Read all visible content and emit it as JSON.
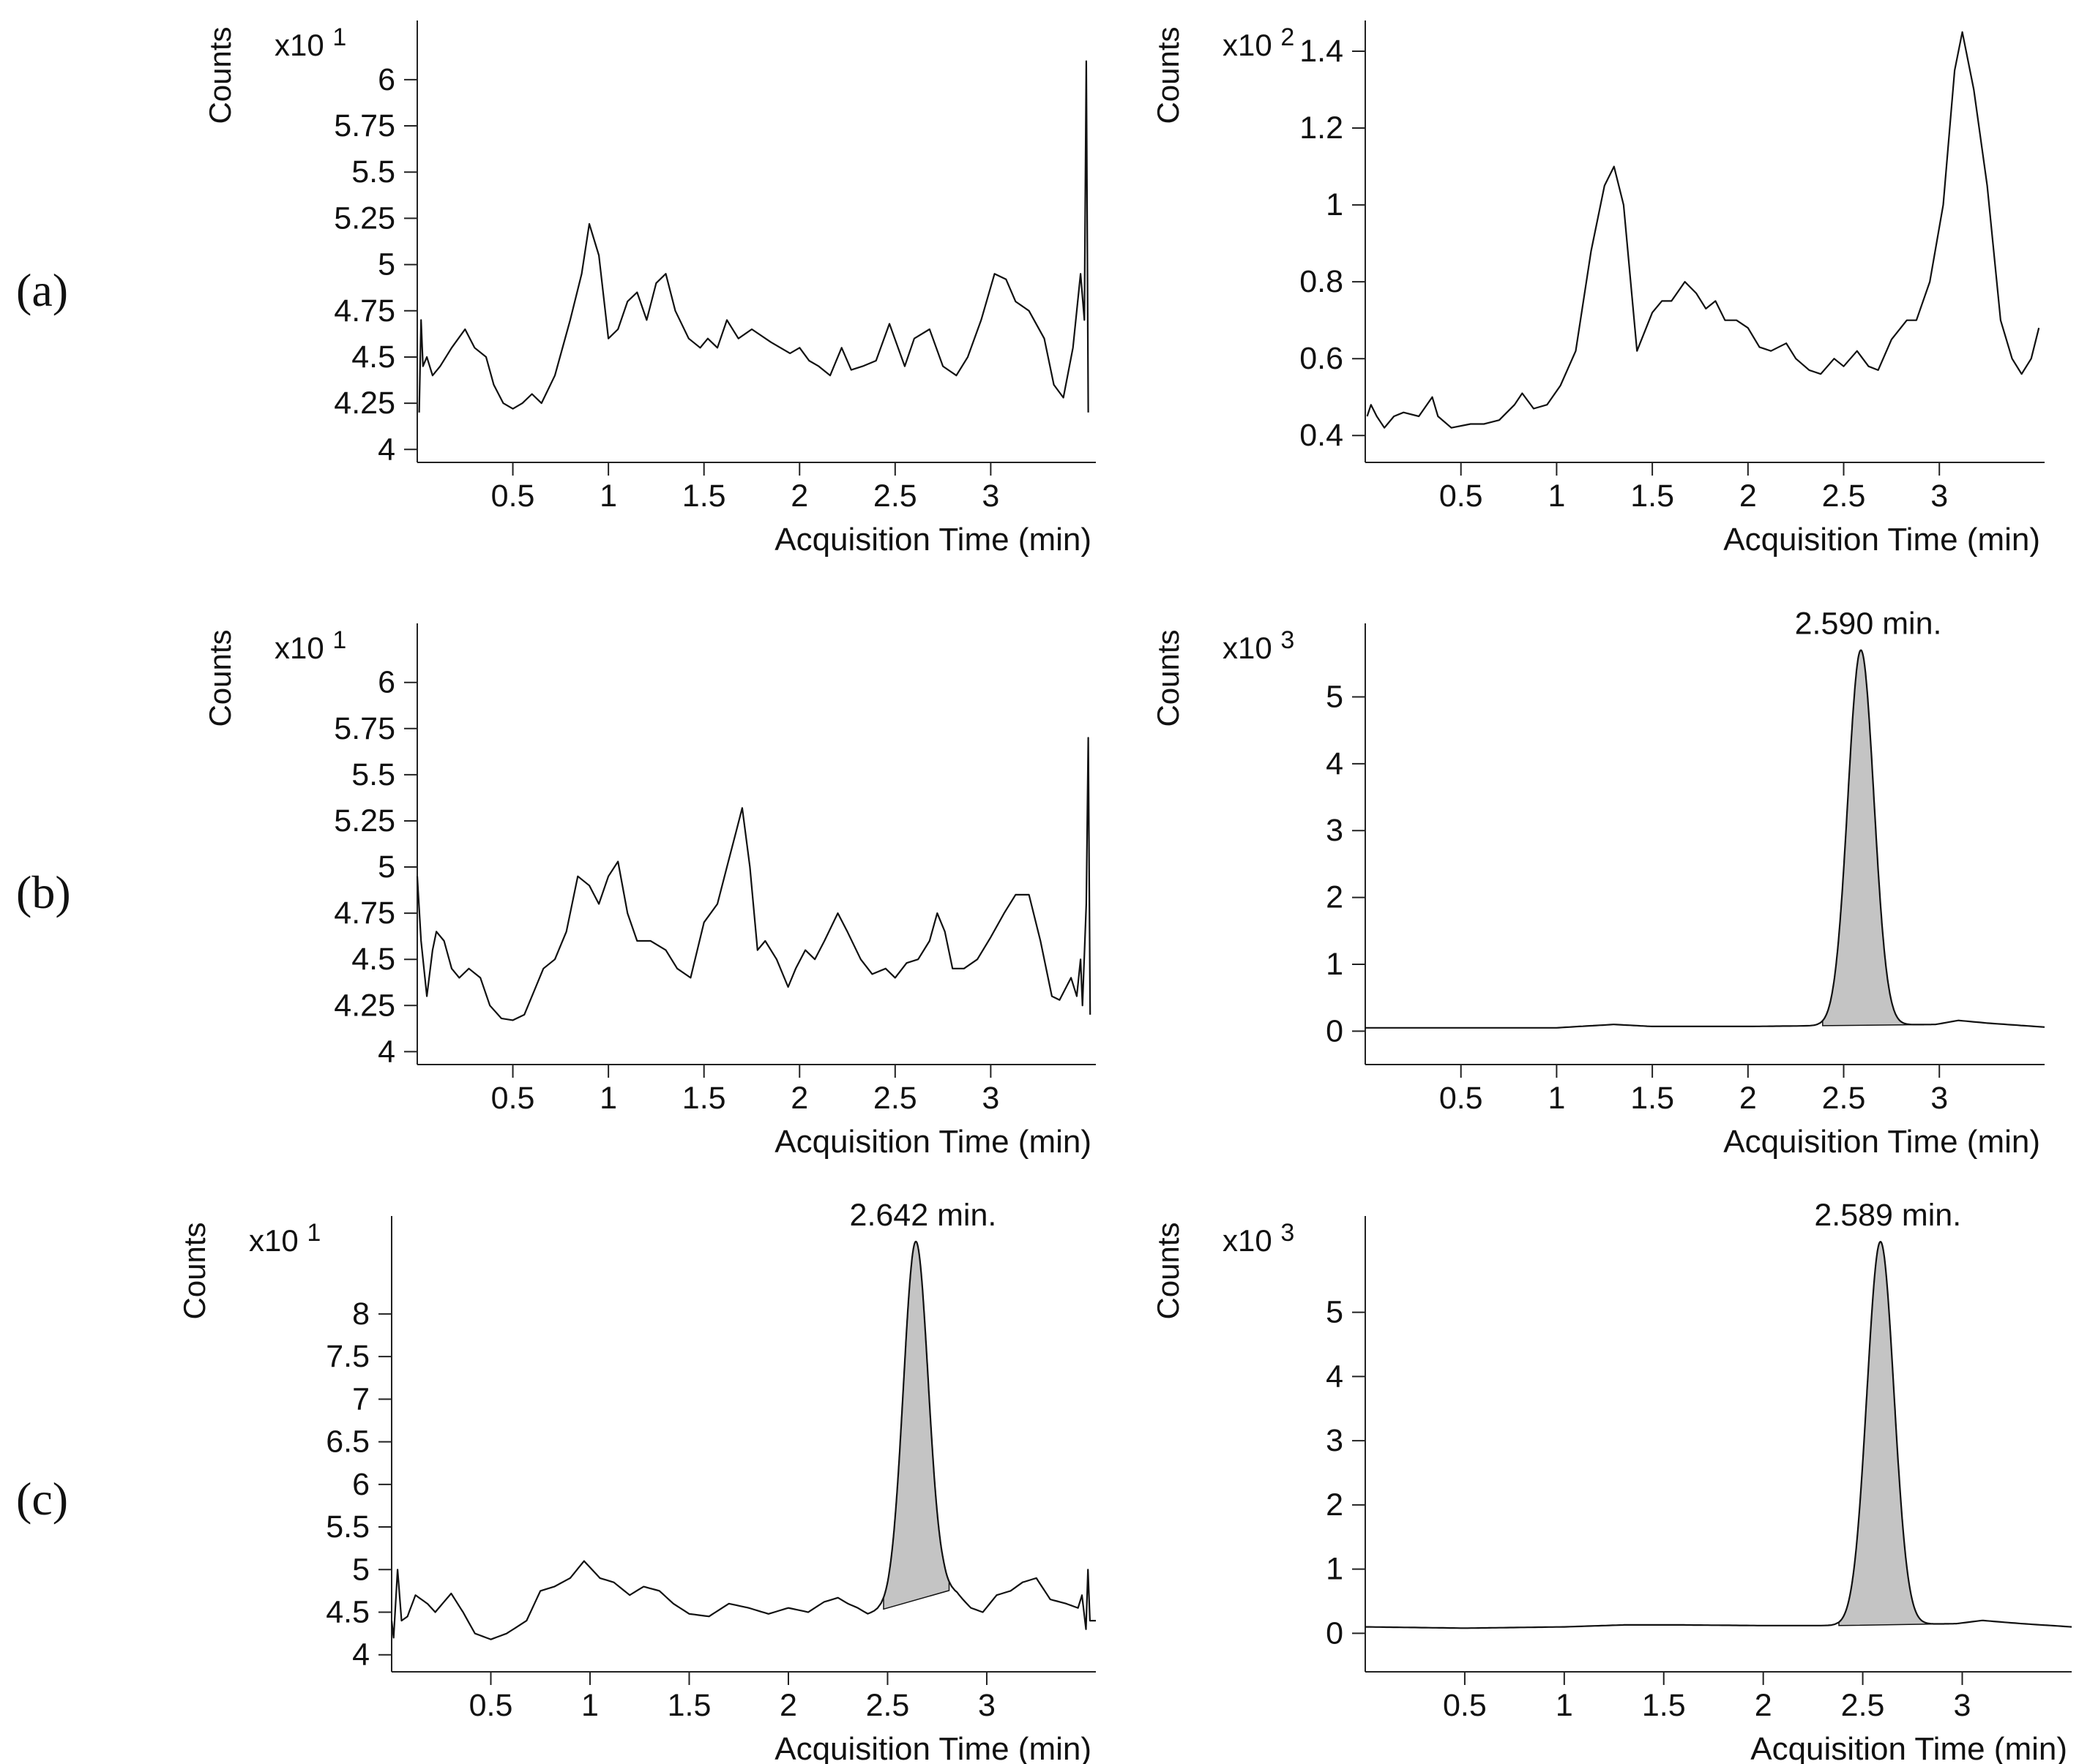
{
  "rows": [
    {
      "label": "(a)"
    },
    {
      "label": "(b)"
    },
    {
      "label": "(c)"
    }
  ],
  "chart_data": [
    {
      "type": "line",
      "row": "(a)",
      "col": "left",
      "xlabel": "Acquisition Time (min)",
      "ylabel": "Counts",
      "multiplier_base": "x10",
      "multiplier_exp": "1",
      "xlim": [
        0.0,
        3.55
      ],
      "ylim": [
        3.93,
        6.32
      ],
      "xticks": [
        0.5,
        1,
        1.5,
        2,
        2.5,
        3
      ],
      "yticks": [
        4,
        4.25,
        4.5,
        4.75,
        5,
        5.25,
        5.5,
        5.75,
        6
      ],
      "annotation": "",
      "points": [
        [
          0.01,
          4.2
        ],
        [
          0.02,
          4.7
        ],
        [
          0.03,
          4.45
        ],
        [
          0.05,
          4.5
        ],
        [
          0.08,
          4.4
        ],
        [
          0.12,
          4.45
        ],
        [
          0.18,
          4.55
        ],
        [
          0.25,
          4.65
        ],
        [
          0.3,
          4.55
        ],
        [
          0.36,
          4.5
        ],
        [
          0.4,
          4.35
        ],
        [
          0.45,
          4.25
        ],
        [
          0.5,
          4.22
        ],
        [
          0.55,
          4.25
        ],
        [
          0.6,
          4.3
        ],
        [
          0.65,
          4.25
        ],
        [
          0.72,
          4.4
        ],
        [
          0.8,
          4.7
        ],
        [
          0.86,
          4.95
        ],
        [
          0.9,
          5.22
        ],
        [
          0.95,
          5.05
        ],
        [
          1.0,
          4.6
        ],
        [
          1.05,
          4.65
        ],
        [
          1.1,
          4.8
        ],
        [
          1.15,
          4.85
        ],
        [
          1.2,
          4.7
        ],
        [
          1.25,
          4.9
        ],
        [
          1.3,
          4.95
        ],
        [
          1.35,
          4.75
        ],
        [
          1.42,
          4.6
        ],
        [
          1.48,
          4.55
        ],
        [
          1.52,
          4.6
        ],
        [
          1.57,
          4.55
        ],
        [
          1.62,
          4.7
        ],
        [
          1.68,
          4.6
        ],
        [
          1.75,
          4.65
        ],
        [
          1.85,
          4.58
        ],
        [
          1.95,
          4.52
        ],
        [
          2.0,
          4.55
        ],
        [
          2.05,
          4.48
        ],
        [
          2.1,
          4.45
        ],
        [
          2.16,
          4.4
        ],
        [
          2.22,
          4.55
        ],
        [
          2.27,
          4.43
        ],
        [
          2.33,
          4.45
        ],
        [
          2.4,
          4.48
        ],
        [
          2.47,
          4.68
        ],
        [
          2.55,
          4.45
        ],
        [
          2.6,
          4.6
        ],
        [
          2.68,
          4.65
        ],
        [
          2.75,
          4.45
        ],
        [
          2.82,
          4.4
        ],
        [
          2.88,
          4.5
        ],
        [
          2.95,
          4.7
        ],
        [
          3.02,
          4.95
        ],
        [
          3.08,
          4.92
        ],
        [
          3.13,
          4.8
        ],
        [
          3.2,
          4.75
        ],
        [
          3.28,
          4.6
        ],
        [
          3.33,
          4.35
        ],
        [
          3.38,
          4.28
        ],
        [
          3.43,
          4.55
        ],
        [
          3.47,
          4.95
        ],
        [
          3.49,
          4.7
        ],
        [
          3.5,
          6.1
        ],
        [
          3.51,
          4.2
        ]
      ]
    },
    {
      "type": "line",
      "row": "(a)",
      "col": "right",
      "xlabel": "Acquisition Time (min)",
      "ylabel": "Counts",
      "multiplier_base": "x10",
      "multiplier_exp": "2",
      "xlim": [
        0.0,
        3.55
      ],
      "ylim": [
        0.33,
        1.48
      ],
      "xticks": [
        0.5,
        1,
        1.5,
        2,
        2.5,
        3
      ],
      "yticks": [
        0.4,
        0.6,
        0.8,
        1,
        1.2,
        1.4
      ],
      "annotation": "",
      "points": [
        [
          0.01,
          0.45
        ],
        [
          0.03,
          0.48
        ],
        [
          0.06,
          0.45
        ],
        [
          0.1,
          0.42
        ],
        [
          0.15,
          0.45
        ],
        [
          0.2,
          0.46
        ],
        [
          0.28,
          0.45
        ],
        [
          0.35,
          0.5
        ],
        [
          0.38,
          0.45
        ],
        [
          0.45,
          0.42
        ],
        [
          0.55,
          0.43
        ],
        [
          0.62,
          0.43
        ],
        [
          0.7,
          0.44
        ],
        [
          0.78,
          0.48
        ],
        [
          0.82,
          0.51
        ],
        [
          0.88,
          0.47
        ],
        [
          0.95,
          0.48
        ],
        [
          1.02,
          0.53
        ],
        [
          1.1,
          0.62
        ],
        [
          1.18,
          0.88
        ],
        [
          1.25,
          1.05
        ],
        [
          1.3,
          1.1
        ],
        [
          1.35,
          1.0
        ],
        [
          1.42,
          0.62
        ],
        [
          1.5,
          0.72
        ],
        [
          1.55,
          0.75
        ],
        [
          1.6,
          0.75
        ],
        [
          1.67,
          0.8
        ],
        [
          1.73,
          0.77
        ],
        [
          1.78,
          0.73
        ],
        [
          1.83,
          0.75
        ],
        [
          1.88,
          0.7
        ],
        [
          1.94,
          0.7
        ],
        [
          2.0,
          0.68
        ],
        [
          2.06,
          0.63
        ],
        [
          2.12,
          0.62
        ],
        [
          2.2,
          0.64
        ],
        [
          2.25,
          0.6
        ],
        [
          2.32,
          0.57
        ],
        [
          2.38,
          0.56
        ],
        [
          2.45,
          0.6
        ],
        [
          2.5,
          0.58
        ],
        [
          2.57,
          0.62
        ],
        [
          2.63,
          0.58
        ],
        [
          2.68,
          0.57
        ],
        [
          2.75,
          0.65
        ],
        [
          2.83,
          0.7
        ],
        [
          2.88,
          0.7
        ],
        [
          2.95,
          0.8
        ],
        [
          3.02,
          1.0
        ],
        [
          3.08,
          1.35
        ],
        [
          3.12,
          1.45
        ],
        [
          3.18,
          1.3
        ],
        [
          3.25,
          1.05
        ],
        [
          3.32,
          0.7
        ],
        [
          3.38,
          0.6
        ],
        [
          3.43,
          0.56
        ],
        [
          3.48,
          0.6
        ],
        [
          3.52,
          0.68
        ]
      ]
    },
    {
      "type": "line",
      "row": "(b)",
      "col": "left",
      "xlabel": "Acquisition Time (min)",
      "ylabel": "Counts",
      "multiplier_base": "x10",
      "multiplier_exp": "1",
      "xlim": [
        0.0,
        3.55
      ],
      "ylim": [
        3.93,
        6.32
      ],
      "xticks": [
        0.5,
        1,
        1.5,
        2,
        2.5,
        3
      ],
      "yticks": [
        4,
        4.25,
        4.5,
        4.75,
        5,
        5.25,
        5.5,
        5.75,
        6
      ],
      "annotation": "",
      "points": [
        [
          0.0,
          4.95
        ],
        [
          0.02,
          4.6
        ],
        [
          0.05,
          4.3
        ],
        [
          0.08,
          4.55
        ],
        [
          0.1,
          4.65
        ],
        [
          0.14,
          4.6
        ],
        [
          0.18,
          4.45
        ],
        [
          0.22,
          4.4
        ],
        [
          0.27,
          4.45
        ],
        [
          0.33,
          4.4
        ],
        [
          0.38,
          4.25
        ],
        [
          0.44,
          4.18
        ],
        [
          0.5,
          4.17
        ],
        [
          0.56,
          4.2
        ],
        [
          0.62,
          4.35
        ],
        [
          0.66,
          4.45
        ],
        [
          0.72,
          4.5
        ],
        [
          0.78,
          4.65
        ],
        [
          0.84,
          4.95
        ],
        [
          0.9,
          4.9
        ],
        [
          0.95,
          4.8
        ],
        [
          1.0,
          4.95
        ],
        [
          1.05,
          5.03
        ],
        [
          1.1,
          4.75
        ],
        [
          1.15,
          4.6
        ],
        [
          1.22,
          4.6
        ],
        [
          1.3,
          4.55
        ],
        [
          1.36,
          4.45
        ],
        [
          1.43,
          4.4
        ],
        [
          1.5,
          4.7
        ],
        [
          1.57,
          4.8
        ],
        [
          1.62,
          5.0
        ],
        [
          1.67,
          5.2
        ],
        [
          1.7,
          5.32
        ],
        [
          1.74,
          5.0
        ],
        [
          1.78,
          4.55
        ],
        [
          1.82,
          4.6
        ],
        [
          1.88,
          4.5
        ],
        [
          1.94,
          4.35
        ],
        [
          1.98,
          4.45
        ],
        [
          2.03,
          4.55
        ],
        [
          2.08,
          4.5
        ],
        [
          2.13,
          4.6
        ],
        [
          2.2,
          4.75
        ],
        [
          2.25,
          4.65
        ],
        [
          2.32,
          4.5
        ],
        [
          2.38,
          4.42
        ],
        [
          2.45,
          4.45
        ],
        [
          2.5,
          4.4
        ],
        [
          2.56,
          4.48
        ],
        [
          2.62,
          4.5
        ],
        [
          2.68,
          4.6
        ],
        [
          2.72,
          4.75
        ],
        [
          2.76,
          4.65
        ],
        [
          2.8,
          4.45
        ],
        [
          2.86,
          4.45
        ],
        [
          2.93,
          4.5
        ],
        [
          3.0,
          4.62
        ],
        [
          3.07,
          4.75
        ],
        [
          3.13,
          4.85
        ],
        [
          3.2,
          4.85
        ],
        [
          3.26,
          4.6
        ],
        [
          3.32,
          4.3
        ],
        [
          3.36,
          4.28
        ],
        [
          3.42,
          4.4
        ],
        [
          3.45,
          4.3
        ],
        [
          3.47,
          4.5
        ],
        [
          3.48,
          4.25
        ],
        [
          3.5,
          4.8
        ],
        [
          3.51,
          5.7
        ],
        [
          3.52,
          4.2
        ]
      ]
    },
    {
      "type": "area",
      "row": "(b)",
      "col": "right",
      "xlabel": "Acquisition Time (min)",
      "ylabel": "Counts",
      "multiplier_base": "x10",
      "multiplier_exp": "3",
      "xlim": [
        0.0,
        3.55
      ],
      "ylim": [
        -0.5,
        6.1
      ],
      "xticks": [
        0.5,
        1,
        1.5,
        2,
        2.5,
        3
      ],
      "yticks": [
        0,
        1,
        2,
        3,
        4,
        5
      ],
      "annotation": "2.590 min.",
      "peak_time": 2.59,
      "peak_height": 5.7,
      "peak_sigma": 0.068,
      "integrated_range": [
        2.39,
        2.98
      ],
      "baseline_points": [
        [
          0.0,
          0.05
        ],
        [
          0.5,
          0.05
        ],
        [
          1.0,
          0.05
        ],
        [
          1.3,
          0.1
        ],
        [
          1.5,
          0.07
        ],
        [
          2.0,
          0.07
        ],
        [
          2.35,
          0.08
        ],
        [
          2.98,
          0.1
        ],
        [
          3.1,
          0.16
        ],
        [
          3.25,
          0.12
        ],
        [
          3.55,
          0.06
        ]
      ]
    },
    {
      "type": "area",
      "row": "(c)",
      "col": "left",
      "xlabel": "Acquisition Time (min)",
      "ylabel": "Counts",
      "multiplier_base": "x10",
      "multiplier_exp": "1",
      "xlim": [
        0.0,
        3.55
      ],
      "ylim": [
        3.8,
        9.15
      ],
      "xticks": [
        0.5,
        1,
        1.5,
        2,
        2.5,
        3
      ],
      "yticks": [
        4,
        4.5,
        5,
        5.5,
        6,
        6.5,
        7,
        7.5,
        8
      ],
      "annotation": "2.642 min.",
      "peak_time": 2.642,
      "peak_height": 8.85,
      "peak_sigma": 0.062,
      "integrated_range": [
        2.48,
        2.81
      ],
      "baseline_points": [
        [
          0.01,
          4.2
        ],
        [
          0.03,
          5.0
        ],
        [
          0.05,
          4.4
        ],
        [
          0.08,
          4.45
        ],
        [
          0.12,
          4.7
        ],
        [
          0.18,
          4.6
        ],
        [
          0.22,
          4.5
        ],
        [
          0.3,
          4.72
        ],
        [
          0.36,
          4.5
        ],
        [
          0.42,
          4.25
        ],
        [
          0.5,
          4.18
        ],
        [
          0.58,
          4.25
        ],
        [
          0.68,
          4.4
        ],
        [
          0.75,
          4.75
        ],
        [
          0.82,
          4.8
        ],
        [
          0.9,
          4.9
        ],
        [
          0.97,
          5.1
        ],
        [
          1.05,
          4.9
        ],
        [
          1.12,
          4.85
        ],
        [
          1.2,
          4.7
        ],
        [
          1.27,
          4.8
        ],
        [
          1.35,
          4.75
        ],
        [
          1.42,
          4.6
        ],
        [
          1.5,
          4.48
        ],
        [
          1.6,
          4.45
        ],
        [
          1.7,
          4.6
        ],
        [
          1.8,
          4.55
        ],
        [
          1.9,
          4.48
        ],
        [
          2.0,
          4.55
        ],
        [
          2.1,
          4.5
        ],
        [
          2.18,
          4.62
        ],
        [
          2.25,
          4.67
        ],
        [
          2.3,
          4.6
        ],
        [
          2.35,
          4.55
        ],
        [
          2.4,
          4.48
        ],
        [
          2.5,
          4.55
        ],
        [
          2.6,
          4.65
        ],
        [
          2.7,
          4.72
        ],
        [
          2.78,
          4.78
        ],
        [
          2.85,
          4.72
        ],
        [
          2.92,
          4.55
        ],
        [
          2.98,
          4.5
        ],
        [
          3.05,
          4.7
        ],
        [
          3.12,
          4.75
        ],
        [
          3.18,
          4.85
        ],
        [
          3.25,
          4.9
        ],
        [
          3.32,
          4.65
        ],
        [
          3.4,
          4.6
        ],
        [
          3.46,
          4.55
        ],
        [
          3.48,
          4.7
        ],
        [
          3.5,
          4.3
        ],
        [
          3.51,
          5.0
        ],
        [
          3.52,
          4.4
        ]
      ]
    },
    {
      "type": "area",
      "row": "(c)",
      "col": "right",
      "xlabel": "Acquisition Time (min)",
      "ylabel": "Counts",
      "multiplier_base": "x10",
      "multiplier_exp": "3",
      "xlim": [
        0.0,
        3.55
      ],
      "ylim": [
        -0.6,
        6.5
      ],
      "xticks": [
        0.5,
        1,
        1.5,
        2,
        2.5,
        3
      ],
      "yticks": [
        0,
        1,
        2,
        3,
        4,
        5
      ],
      "annotation": "2.589 min.",
      "peak_time": 2.589,
      "peak_height": 6.1,
      "peak_sigma": 0.068,
      "integrated_range": [
        2.38,
        2.97
      ],
      "baseline_points": [
        [
          0.0,
          0.1
        ],
        [
          0.5,
          0.08
        ],
        [
          1.0,
          0.1
        ],
        [
          1.3,
          0.13
        ],
        [
          1.6,
          0.13
        ],
        [
          2.0,
          0.12
        ],
        [
          2.38,
          0.12
        ],
        [
          2.97,
          0.15
        ],
        [
          3.1,
          0.2
        ],
        [
          3.3,
          0.15
        ],
        [
          3.55,
          0.1
        ]
      ]
    }
  ]
}
